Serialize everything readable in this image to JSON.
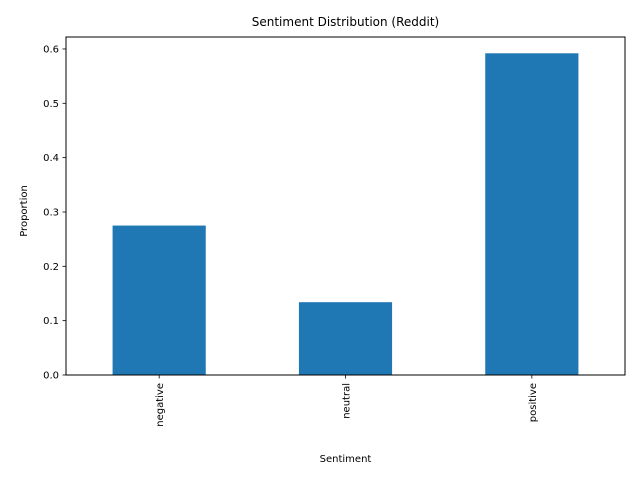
{
  "chart_data": {
    "type": "bar",
    "title": "Sentiment Distribution (Reddit)",
    "xlabel": "Sentiment",
    "ylabel": "Proportion",
    "categories": [
      "negative",
      "neutral",
      "positive"
    ],
    "values": [
      0.275,
      0.134,
      0.592
    ],
    "ylim": [
      0,
      0.622
    ],
    "yticks": [
      0.0,
      0.1,
      0.2,
      0.3,
      0.4,
      0.5,
      0.6
    ],
    "ytick_labels": [
      "0.0",
      "0.1",
      "0.2",
      "0.3",
      "0.4",
      "0.5",
      "0.6"
    ],
    "bar_color": "#1f77b4",
    "grid": false,
    "legend": false
  }
}
